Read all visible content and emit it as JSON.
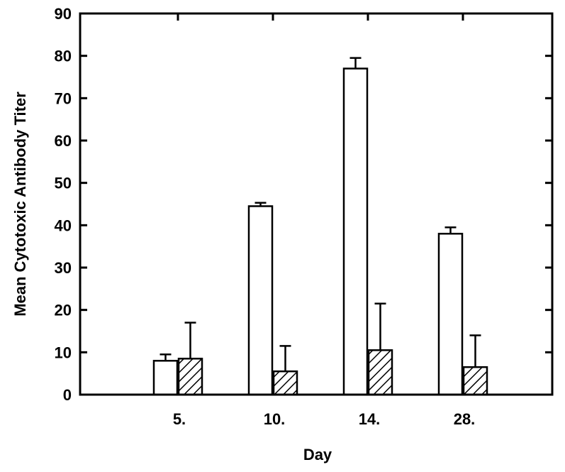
{
  "chart_data": {
    "type": "bar",
    "title": "",
    "xlabel": "Day",
    "ylabel": "Mean Cytotoxic Antibody Titer",
    "categories": [
      "5.",
      "10.",
      "14.",
      "28."
    ],
    "ylim": [
      0,
      90
    ],
    "yticks": [
      0,
      10,
      20,
      30,
      40,
      50,
      60,
      70,
      80,
      90
    ],
    "yticklabels": [
      "0",
      "10",
      "20",
      "30",
      "40",
      "50",
      "60",
      "70",
      "80",
      "90"
    ],
    "grid": false,
    "legend": "none",
    "series": [
      {
        "fill": "open",
        "values": [
          8,
          44.5,
          77,
          38
        ],
        "error": [
          1.5,
          0.8,
          2.5,
          1.5
        ]
      },
      {
        "fill": "hatched",
        "values": [
          8.5,
          5.5,
          10.5,
          6.5
        ],
        "error": [
          8.5,
          6,
          11,
          7.5
        ]
      }
    ],
    "colors": {
      "stroke": "#000000",
      "background": "#ffffff"
    }
  }
}
